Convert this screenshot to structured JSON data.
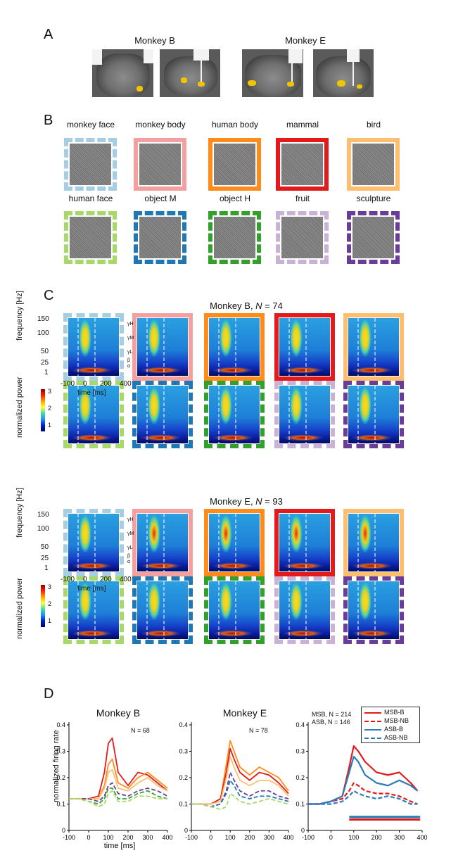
{
  "panelA": {
    "letter": "A",
    "monkey_b": "Monkey B",
    "monkey_e": "Monkey E"
  },
  "panelB": {
    "letter": "B",
    "categories": [
      {
        "label": "monkey face",
        "color": "#a6cee3",
        "dashed": true
      },
      {
        "label": "monkey body",
        "color": "#f4a0a0",
        "dashed": false
      },
      {
        "label": "human body",
        "color": "#ff8c1a",
        "dashed": false
      },
      {
        "label": "mammal",
        "color": "#e31a1c",
        "dashed": false
      },
      {
        "label": "bird",
        "color": "#fdbf6f",
        "dashed": false
      },
      {
        "label": "human face",
        "color": "#a6d96a",
        "dashed": true
      },
      {
        "label": "object M",
        "color": "#1f78b4",
        "dashed": true
      },
      {
        "label": "object H",
        "color": "#33a02c",
        "dashed": true
      },
      {
        "label": "fruit",
        "color": "#cab2d6",
        "dashed": true
      },
      {
        "label": "sculpture",
        "color": "#6a3d9a",
        "dashed": true
      }
    ]
  },
  "panelC": {
    "letter": "C",
    "title_b": "Monkey B, ",
    "n_b_label": "N",
    "n_b_value": " = 74",
    "title_e": "Monkey E, ",
    "n_e_label": "N",
    "n_e_value": " = 93",
    "ylabel_freq": "frequency [Hz]",
    "ylabel_power": "normalized power",
    "xlabel": "time [ms]",
    "freq_ticks": [
      "150",
      "100",
      "50",
      "25",
      "1"
    ],
    "time_ticks": [
      "-100",
      "0",
      "200",
      "400"
    ],
    "power_ticks": [
      "3",
      "2",
      "1"
    ],
    "band_labels": [
      "γH",
      "γM",
      "γL",
      "β",
      "α"
    ]
  },
  "panelD": {
    "letter": "D",
    "title_b": "Monkey B",
    "title_e": "Monkey E",
    "n_b": "N = 68",
    "n_e": "N = 78",
    "ylabel": "normalized firing rate",
    "xlabel": "time [ms]",
    "annot_msb": "MSB, N = 214",
    "annot_asb": "ASB, N = 146",
    "legend": [
      "MSB-B",
      "MSB-NB",
      "ASB-B",
      "ASB-NB"
    ],
    "y_ticks": [
      "0.4",
      "0.3",
      "0.2",
      "0.1",
      "0"
    ],
    "x_ticks": [
      "-100",
      "0",
      "100",
      "200",
      "300",
      "400"
    ]
  },
  "chart_data": [
    {
      "type": "line",
      "title": "Monkey B",
      "xlabel": "time [ms]",
      "ylabel": "normalized firing rate",
      "xlim": [
        -100,
        400
      ],
      "ylim": [
        0,
        0.4
      ],
      "x": [
        -100,
        -50,
        0,
        50,
        80,
        100,
        120,
        150,
        200,
        250,
        300,
        350,
        400
      ],
      "series": [
        {
          "color": "#e31a1c",
          "values": [
            0.12,
            0.12,
            0.12,
            0.13,
            0.22,
            0.33,
            0.35,
            0.22,
            0.17,
            0.22,
            0.21,
            0.18,
            0.15
          ]
        },
        {
          "color": "#ff8c1a",
          "values": [
            0.12,
            0.12,
            0.12,
            0.12,
            0.17,
            0.25,
            0.27,
            0.18,
            0.16,
            0.2,
            0.22,
            0.19,
            0.16
          ]
        },
        {
          "color": "#fdbf6f",
          "values": [
            0.12,
            0.12,
            0.12,
            0.12,
            0.16,
            0.22,
            0.23,
            0.16,
            0.15,
            0.18,
            0.2,
            0.17,
            0.15
          ]
        },
        {
          "color": "#6a3d9a",
          "values": [
            0.12,
            0.12,
            0.12,
            0.11,
            0.13,
            0.17,
            0.18,
            0.14,
            0.13,
            0.15,
            0.16,
            0.15,
            0.13
          ]
        },
        {
          "color": "#33a02c",
          "values": [
            0.12,
            0.12,
            0.11,
            0.1,
            0.12,
            0.16,
            0.16,
            0.12,
            0.12,
            0.14,
            0.15,
            0.13,
            0.12
          ]
        },
        {
          "color": "#a6d96a",
          "values": [
            0.12,
            0.12,
            0.11,
            0.09,
            0.1,
            0.14,
            0.15,
            0.11,
            0.11,
            0.13,
            0.13,
            0.12,
            0.12
          ]
        }
      ]
    },
    {
      "type": "line",
      "title": "Monkey E",
      "xlabel": "time [ms]",
      "ylabel": "normalized firing rate",
      "xlim": [
        -100,
        400
      ],
      "ylim": [
        0,
        0.4
      ],
      "x": [
        -100,
        -50,
        0,
        50,
        80,
        100,
        120,
        150,
        200,
        250,
        300,
        350,
        400
      ],
      "series": [
        {
          "color": "#ff8c1a",
          "values": [
            0.1,
            0.1,
            0.1,
            0.12,
            0.25,
            0.34,
            0.3,
            0.24,
            0.21,
            0.24,
            0.22,
            0.2,
            0.15
          ]
        },
        {
          "color": "#e31a1c",
          "values": [
            0.1,
            0.1,
            0.1,
            0.12,
            0.22,
            0.31,
            0.27,
            0.22,
            0.19,
            0.22,
            0.21,
            0.18,
            0.14
          ]
        },
        {
          "color": "#fdbf6f",
          "values": [
            0.1,
            0.1,
            0.1,
            0.11,
            0.2,
            0.28,
            0.24,
            0.19,
            0.17,
            0.19,
            0.19,
            0.17,
            0.13
          ]
        },
        {
          "color": "#6a3d9a",
          "values": [
            0.1,
            0.1,
            0.09,
            0.1,
            0.15,
            0.22,
            0.19,
            0.15,
            0.13,
            0.15,
            0.15,
            0.13,
            0.12
          ]
        },
        {
          "color": "#1f78b4",
          "values": [
            0.1,
            0.1,
            0.09,
            0.1,
            0.14,
            0.19,
            0.17,
            0.13,
            0.12,
            0.13,
            0.13,
            0.12,
            0.11
          ]
        },
        {
          "color": "#a6d96a",
          "values": [
            0.1,
            0.1,
            0.09,
            0.08,
            0.09,
            0.14,
            0.13,
            0.11,
            0.1,
            0.11,
            0.12,
            0.11,
            0.1
          ]
        }
      ]
    },
    {
      "type": "line",
      "xlim": [
        -100,
        400
      ],
      "ylim": [
        0,
        0.4
      ],
      "x": [
        -100,
        -50,
        0,
        50,
        80,
        100,
        120,
        150,
        200,
        250,
        300,
        350,
        380
      ],
      "series": [
        {
          "name": "MSB-B",
          "color": "#e31a1c",
          "dash": false,
          "values": [
            0.1,
            0.1,
            0.11,
            0.13,
            0.24,
            0.32,
            0.3,
            0.26,
            0.22,
            0.21,
            0.22,
            0.18,
            0.15
          ]
        },
        {
          "name": "MSB-NB",
          "color": "#e31a1c",
          "dash": true,
          "values": [
            0.1,
            0.1,
            0.11,
            0.12,
            0.15,
            0.18,
            0.17,
            0.15,
            0.14,
            0.14,
            0.13,
            0.11,
            0.1
          ]
        },
        {
          "name": "ASB-B",
          "color": "#2b7bba",
          "dash": false,
          "values": [
            0.1,
            0.1,
            0.11,
            0.13,
            0.22,
            0.28,
            0.26,
            0.21,
            0.18,
            0.17,
            0.19,
            0.17,
            0.15
          ]
        },
        {
          "name": "ASB-NB",
          "color": "#2b7bba",
          "dash": true,
          "values": [
            0.1,
            0.1,
            0.1,
            0.11,
            0.13,
            0.15,
            0.14,
            0.13,
            0.12,
            0.13,
            0.12,
            0.1,
            0.1
          ]
        }
      ]
    }
  ]
}
